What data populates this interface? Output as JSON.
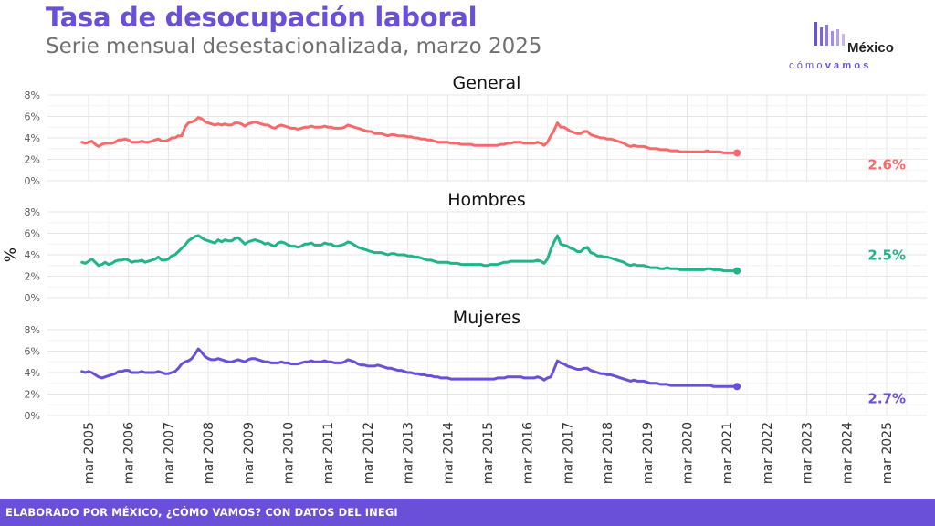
{
  "header": {
    "title": "Tasa de desocupación laboral",
    "subtitle": "Serie mensual desestacionalizada, marzo 2025"
  },
  "logo": {
    "top": "México",
    "bottom_light": "cómo",
    "bottom_bold": "vamos"
  },
  "footer": {
    "text": "ELABORADO POR MÉXICO, ¿CÓMO VAMOS? CON DATOS DEL INEGI"
  },
  "chart_data": {
    "type": "line",
    "ylabel": "%",
    "xlabel": "",
    "x_ticks": [
      "mar 2005",
      "mar 2006",
      "mar 2007",
      "mar 2008",
      "mar 2009",
      "mar 2010",
      "mar 2011",
      "mar 2012",
      "mar 2013",
      "mar 2014",
      "mar 2015",
      "mar 2016",
      "mar 2017",
      "mar 2018",
      "mar 2019",
      "mar 2020",
      "mar 2021",
      "mar 2022",
      "mar 2023",
      "mar 2024",
      "mar 2025"
    ],
    "y_ticks": [
      "0%",
      "2%",
      "4%",
      "6%",
      "8%"
    ],
    "ylim": [
      0,
      8
    ],
    "grid": true,
    "x_start": "2005-01",
    "x_end": "2025-03",
    "panels": [
      {
        "name": "General",
        "color": "#f8696b",
        "end_label": "2.6%",
        "values": [
          3.6,
          3.5,
          3.6,
          3.7,
          3.4,
          3.2,
          3.4,
          3.5,
          3.5,
          3.5,
          3.6,
          3.8,
          3.8,
          3.9,
          3.8,
          3.6,
          3.6,
          3.6,
          3.7,
          3.6,
          3.6,
          3.7,
          3.8,
          3.9,
          3.7,
          3.7,
          3.8,
          4.0,
          4.0,
          4.2,
          4.2,
          5.0,
          5.4,
          5.5,
          5.6,
          5.9,
          5.8,
          5.5,
          5.4,
          5.3,
          5.2,
          5.3,
          5.2,
          5.3,
          5.2,
          5.2,
          5.4,
          5.4,
          5.3,
          5.1,
          5.3,
          5.4,
          5.5,
          5.4,
          5.3,
          5.2,
          5.2,
          5.0,
          4.9,
          5.1,
          5.2,
          5.1,
          5.0,
          4.9,
          4.9,
          4.8,
          4.9,
          5.0,
          5.0,
          5.1,
          5.0,
          5.0,
          5.0,
          5.1,
          5.0,
          5.0,
          4.9,
          4.9,
          4.9,
          5.0,
          5.2,
          5.1,
          5.0,
          4.9,
          4.8,
          4.7,
          4.6,
          4.6,
          4.4,
          4.4,
          4.4,
          4.3,
          4.2,
          4.3,
          4.3,
          4.2,
          4.2,
          4.2,
          4.1,
          4.1,
          4.0,
          4.0,
          3.9,
          3.9,
          3.8,
          3.8,
          3.7,
          3.6,
          3.6,
          3.6,
          3.6,
          3.5,
          3.5,
          3.5,
          3.4,
          3.4,
          3.4,
          3.4,
          3.3,
          3.3,
          3.3,
          3.3,
          3.3,
          3.3,
          3.3,
          3.3,
          3.4,
          3.4,
          3.5,
          3.5,
          3.6,
          3.6,
          3.6,
          3.5,
          3.5,
          3.5,
          3.5,
          3.6,
          3.5,
          3.3,
          3.6,
          4.2,
          4.7,
          5.4,
          5.0,
          5.0,
          4.8,
          4.6,
          4.5,
          4.4,
          4.4,
          4.6,
          4.6,
          4.3,
          4.2,
          4.1,
          4.0,
          4.0,
          3.9,
          3.9,
          3.8,
          3.7,
          3.6,
          3.5,
          3.3,
          3.2,
          3.3,
          3.2,
          3.2,
          3.2,
          3.1,
          3.0,
          3.0,
          3.0,
          2.9,
          2.9,
          2.9,
          2.8,
          2.8,
          2.8,
          2.7,
          2.7,
          2.7,
          2.7,
          2.7,
          2.7,
          2.7,
          2.7,
          2.8,
          2.7,
          2.7,
          2.7,
          2.7,
          2.6,
          2.6,
          2.6,
          2.6,
          2.6
        ]
      },
      {
        "name": "Hombres",
        "color": "#1fb589",
        "end_label": "2.5%",
        "values": [
          3.3,
          3.2,
          3.4,
          3.6,
          3.3,
          3.0,
          3.1,
          3.3,
          3.1,
          3.2,
          3.4,
          3.5,
          3.5,
          3.6,
          3.5,
          3.3,
          3.4,
          3.4,
          3.5,
          3.3,
          3.4,
          3.5,
          3.6,
          3.8,
          3.5,
          3.5,
          3.6,
          3.9,
          4.0,
          4.3,
          4.6,
          4.9,
          5.3,
          5.5,
          5.7,
          5.8,
          5.6,
          5.4,
          5.3,
          5.2,
          5.1,
          5.4,
          5.2,
          5.4,
          5.3,
          5.3,
          5.5,
          5.6,
          5.3,
          5.0,
          5.2,
          5.3,
          5.4,
          5.3,
          5.2,
          5.0,
          5.1,
          4.9,
          4.8,
          5.1,
          5.2,
          5.1,
          4.9,
          4.8,
          4.8,
          4.7,
          4.8,
          5.0,
          5.0,
          5.1,
          4.9,
          4.9,
          4.9,
          5.1,
          5.0,
          5.0,
          4.8,
          4.8,
          4.9,
          5.0,
          5.2,
          5.1,
          4.9,
          4.7,
          4.6,
          4.5,
          4.4,
          4.3,
          4.2,
          4.2,
          4.2,
          4.1,
          4.0,
          4.1,
          4.1,
          4.0,
          4.0,
          4.0,
          3.9,
          3.9,
          3.8,
          3.8,
          3.7,
          3.6,
          3.5,
          3.5,
          3.4,
          3.3,
          3.3,
          3.3,
          3.3,
          3.2,
          3.2,
          3.2,
          3.1,
          3.1,
          3.1,
          3.1,
          3.1,
          3.1,
          3.1,
          3.0,
          3.0,
          3.1,
          3.1,
          3.1,
          3.2,
          3.3,
          3.3,
          3.4,
          3.4,
          3.4,
          3.4,
          3.4,
          3.4,
          3.4,
          3.4,
          3.5,
          3.4,
          3.2,
          3.6,
          4.5,
          5.2,
          5.8,
          5.0,
          4.9,
          4.8,
          4.6,
          4.5,
          4.3,
          4.3,
          4.6,
          4.7,
          4.2,
          4.1,
          3.9,
          3.9,
          3.8,
          3.8,
          3.7,
          3.6,
          3.5,
          3.4,
          3.3,
          3.1,
          3.0,
          3.1,
          3.0,
          3.0,
          3.0,
          2.9,
          2.8,
          2.8,
          2.8,
          2.7,
          2.7,
          2.8,
          2.7,
          2.7,
          2.7,
          2.6,
          2.6,
          2.6,
          2.6,
          2.6,
          2.6,
          2.6,
          2.6,
          2.7,
          2.7,
          2.6,
          2.6,
          2.6,
          2.5,
          2.5,
          2.5,
          2.5,
          2.5
        ]
      },
      {
        "name": "Mujeres",
        "color": "#6a4fd8",
        "end_label": "2.7%",
        "values": [
          4.1,
          4.0,
          4.1,
          4.0,
          3.8,
          3.6,
          3.5,
          3.6,
          3.7,
          3.8,
          3.9,
          4.1,
          4.1,
          4.2,
          4.2,
          4.0,
          4.0,
          4.0,
          4.1,
          4.0,
          4.0,
          4.0,
          4.0,
          4.1,
          4.0,
          3.9,
          3.9,
          4.0,
          4.1,
          4.4,
          4.8,
          5.0,
          5.1,
          5.3,
          5.7,
          6.2,
          5.9,
          5.5,
          5.3,
          5.2,
          5.2,
          5.3,
          5.2,
          5.1,
          5.0,
          5.0,
          5.1,
          5.2,
          5.1,
          5.0,
          5.2,
          5.3,
          5.3,
          5.2,
          5.1,
          5.0,
          5.0,
          4.9,
          4.9,
          4.9,
          5.0,
          4.9,
          4.9,
          4.8,
          4.8,
          4.8,
          4.9,
          5.0,
          5.0,
          5.1,
          5.0,
          5.0,
          5.0,
          5.1,
          5.0,
          5.0,
          4.9,
          4.9,
          4.9,
          5.0,
          5.2,
          5.1,
          5.0,
          4.8,
          4.7,
          4.7,
          4.6,
          4.6,
          4.6,
          4.7,
          4.6,
          4.5,
          4.4,
          4.4,
          4.3,
          4.2,
          4.2,
          4.1,
          4.0,
          4.0,
          3.9,
          3.9,
          3.8,
          3.8,
          3.7,
          3.7,
          3.6,
          3.6,
          3.5,
          3.5,
          3.5,
          3.4,
          3.4,
          3.4,
          3.4,
          3.4,
          3.4,
          3.4,
          3.4,
          3.4,
          3.4,
          3.4,
          3.4,
          3.4,
          3.4,
          3.5,
          3.5,
          3.5,
          3.6,
          3.6,
          3.6,
          3.6,
          3.6,
          3.5,
          3.5,
          3.5,
          3.5,
          3.6,
          3.5,
          3.3,
          3.5,
          3.6,
          4.3,
          5.1,
          4.9,
          4.8,
          4.6,
          4.5,
          4.4,
          4.3,
          4.3,
          4.4,
          4.4,
          4.2,
          4.1,
          4.0,
          3.9,
          3.9,
          3.8,
          3.8,
          3.7,
          3.6,
          3.5,
          3.4,
          3.3,
          3.2,
          3.3,
          3.2,
          3.2,
          3.2,
          3.1,
          3.0,
          3.0,
          3.0,
          2.9,
          2.9,
          2.9,
          2.8,
          2.8,
          2.8,
          2.8,
          2.8,
          2.8,
          2.8,
          2.8,
          2.8,
          2.8,
          2.8,
          2.8,
          2.8,
          2.7,
          2.7,
          2.7,
          2.7,
          2.7,
          2.7,
          2.7,
          2.7
        ]
      }
    ]
  }
}
